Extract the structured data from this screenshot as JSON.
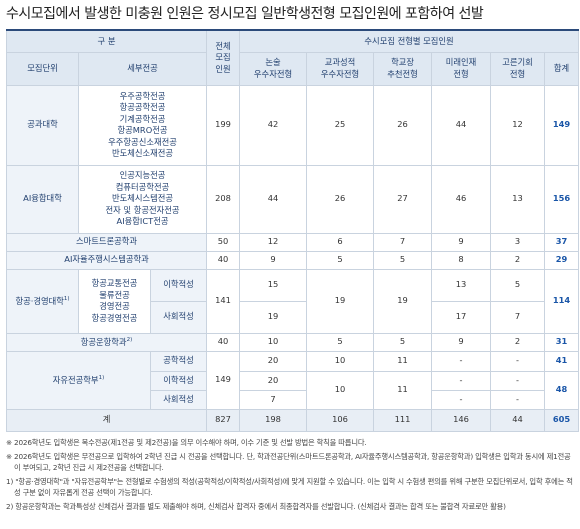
{
  "title": "수시모집에서 발생한 미충원 인원은 정시모집 일반학생전형 모집인원에 포함하여 선발",
  "table": {
    "header": {
      "category": "구 분",
      "unit": "모집단위",
      "major": "세부전공",
      "total": [
        "전체",
        "모집",
        "인원"
      ],
      "susi": "수시모집 전형별 모집인원",
      "tracks": [
        [
          "논술",
          "우수자전형"
        ],
        [
          "교과성적",
          "우수자전형"
        ],
        [
          "학교장",
          "추천전형"
        ],
        [
          "미래인재",
          "전형"
        ],
        [
          "고른기회",
          "전형"
        ],
        [
          "합계"
        ]
      ]
    },
    "rows": [
      {
        "unit": "공과대학",
        "majors": [
          "우주공학전공",
          "항공공학전공",
          "기계공학전공",
          "항공MRO전공",
          "우주항공신소재전공",
          "반도체신소재전공"
        ],
        "total": 199,
        "counts": [
          42,
          25,
          26,
          44,
          12,
          149
        ]
      },
      {
        "unit": "AI융합대학",
        "majors": [
          "인공지능전공",
          "컴퓨터공학전공",
          "반도체시스템전공",
          "전자 및 항공전자전공",
          "AI융합ICT전공"
        ],
        "total": 208,
        "counts": [
          44,
          26,
          27,
          46,
          13,
          156
        ]
      },
      {
        "unit": "스마트드론공학과",
        "total": 50,
        "counts": [
          12,
          6,
          7,
          9,
          3,
          37
        ]
      },
      {
        "unit": "AI자율주행시스템공학과",
        "total": 40,
        "counts": [
          9,
          5,
          5,
          8,
          2,
          29
        ]
      },
      {
        "unit": "항공·경영대학",
        "note": "1)",
        "majors": [
          "항공교통전공",
          "물류전공",
          "경영전공",
          "항공경영전공"
        ],
        "aptitudes": [
          "이학적성",
          "사회적성"
        ],
        "total": 141,
        "essay": [
          15,
          19
        ],
        "grade": 19,
        "principal": 19,
        "future": [
          13,
          17
        ],
        "equal": [
          5,
          7
        ],
        "sum": 114
      },
      {
        "unit": "항공운항학과",
        "note": "2)",
        "total": 40,
        "counts": [
          10,
          5,
          5,
          9,
          2,
          31
        ]
      },
      {
        "unit": "자유전공학부",
        "note": "1)",
        "aptitudes": [
          "공학적성",
          "이학적성",
          "사회적성"
        ],
        "total": 149,
        "essay": [
          20,
          20,
          7
        ],
        "grade": [
          10,
          10
        ],
        "principal": [
          11,
          11
        ],
        "future": [
          "-",
          "-",
          "-"
        ],
        "equal": [
          "-",
          "-",
          "-"
        ],
        "sum": [
          41,
          48
        ]
      },
      {
        "unit": "계",
        "total": 827,
        "counts": [
          198,
          106,
          111,
          146,
          44,
          605
        ]
      }
    ]
  },
  "notes": [
    "※ 2026학년도 입학생은 복수전공(제1전공 및 제2전공)을 의무 이수해야 하며, 이수 기준 및 선발 방법은 학칙을 따릅니다.",
    "※ 2026학년도 입학생은 무전공으로 입학하여 2학년 진급 시 전공을 선택합니다. 단, 학과전공단위(스마트드론공학과, AI자율주행시스템공학과, 항공운항학과) 입학생은 입학과 동시에 제1전공이 부여되고, 2학년 진급 시 제2전공을 선택합니다.",
    "1) \"항공·경영대학\"과 \"자유전공학부\"는 전형별로 수험생의 적성(공학적성/이학적성/사회적성)에 맞게 지원할 수 있습니다. 이는 입학 시 수험생 편의를 위해 구분한 모집단위로서, 입학 후에는 적성 구분 없이 자유롭게 전공 선택이 가능합니다.",
    "2) 항공운항학과는 학과특성상 신체검사 결과를 별도 제출해야 하며, 신체검사 합격자 중에서 최종합격자를 선발합니다. (신체검사 결과는 합격 또는 불합격 자료로만 활용)"
  ]
}
